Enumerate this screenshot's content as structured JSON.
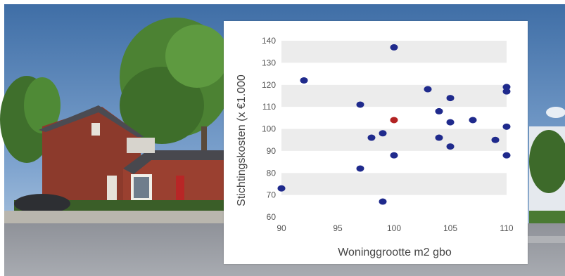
{
  "chart_data": {
    "type": "scatter",
    "xlabel": "Woninggrootte m2 gbo",
    "ylabel": "Stichtingskosten (x €1.000",
    "xlim": [
      90,
      110
    ],
    "ylim": [
      60,
      140
    ],
    "x_ticks": [
      "90",
      "95",
      "100",
      "105",
      "110"
    ],
    "y_ticks": [
      "140",
      "130",
      "120",
      "110",
      "100",
      "90",
      "80",
      "70",
      "60"
    ],
    "grid": "alternating horizontal bands",
    "series": [
      {
        "color": "#1f2a8c",
        "points": [
          {
            "x": 90,
            "y": 73
          },
          {
            "x": 92,
            "y": 122
          },
          {
            "x": 97,
            "y": 111
          },
          {
            "x": 97,
            "y": 82
          },
          {
            "x": 98,
            "y": 96
          },
          {
            "x": 99,
            "y": 98
          },
          {
            "x": 99,
            "y": 67
          },
          {
            "x": 100,
            "y": 137
          },
          {
            "x": 100,
            "y": 88
          },
          {
            "x": 103,
            "y": 118
          },
          {
            "x": 104,
            "y": 108
          },
          {
            "x": 104,
            "y": 96
          },
          {
            "x": 105,
            "y": 114
          },
          {
            "x": 105,
            "y": 103
          },
          {
            "x": 105,
            "y": 92
          },
          {
            "x": 107,
            "y": 104
          },
          {
            "x": 109,
            "y": 95
          },
          {
            "x": 110,
            "y": 119
          },
          {
            "x": 110,
            "y": 117
          },
          {
            "x": 110,
            "y": 101
          },
          {
            "x": 110,
            "y": 88
          }
        ]
      },
      {
        "color": "#b22222",
        "points": [
          {
            "x": 100,
            "y": 104
          }
        ]
      }
    ]
  }
}
